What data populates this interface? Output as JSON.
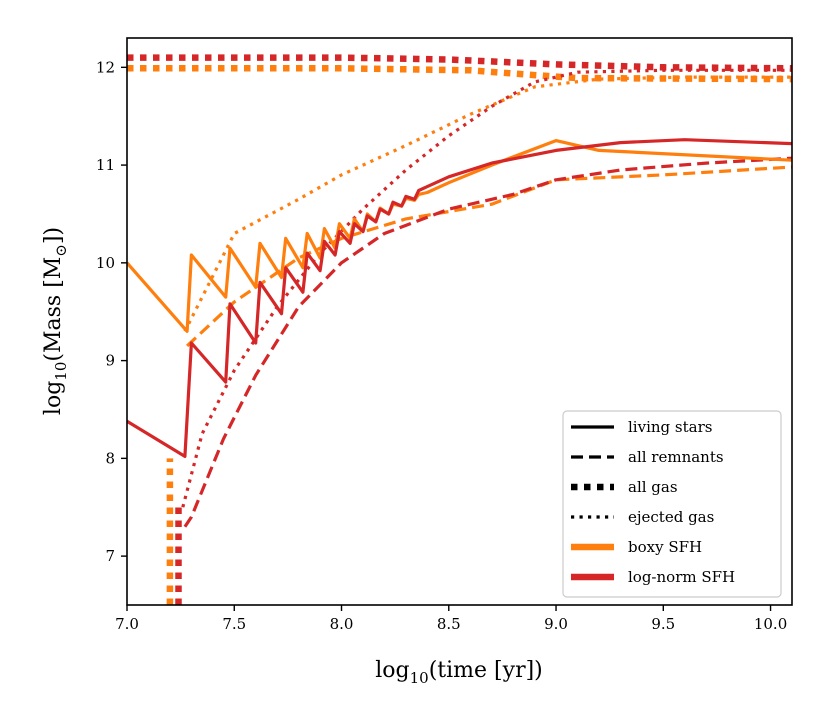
{
  "chart_data": {
    "type": "line",
    "xlabel": "log",
    "xlabel_sub": "10",
    "xlabel_rest": "(time [yr])",
    "ylabel": "log",
    "ylabel_sub": "10",
    "ylabel_rest": "(Mass [M",
    "ylabel_sun": "⊙",
    "ylabel_end": "])",
    "xlim": [
      7.0,
      10.1
    ],
    "ylim": [
      6.5,
      12.3
    ],
    "xticks": [
      "7.0",
      "7.5",
      "8.0",
      "8.5",
      "9.0",
      "9.5",
      "10.0"
    ],
    "yticks": [
      "7",
      "8",
      "9",
      "10",
      "11",
      "12"
    ],
    "grid": false,
    "legend_position": "lower-right",
    "legend": [
      {
        "label": "living stars",
        "style": "solid",
        "color": "#000000"
      },
      {
        "label": "all remnants",
        "style": "dashed",
        "color": "#000000"
      },
      {
        "label": "all gas",
        "style": "dense-dotted",
        "color": "#000000"
      },
      {
        "label": "ejected gas",
        "style": "dotted",
        "color": "#000000"
      },
      {
        "label": "boxy SFH",
        "style": "solid-thick",
        "color": "#ff7f0e"
      },
      {
        "label": "log-norm SFH",
        "style": "solid-thick",
        "color": "#d62728"
      }
    ],
    "colors": {
      "boxy": "#ff7f0e",
      "lognorm": "#d62728"
    },
    "series": [
      {
        "model": "boxy SFH",
        "kind": "all gas",
        "style": "dense-dotted",
        "color": "#ff7f0e",
        "x": [
          7.0,
          8.0,
          8.6,
          8.9,
          9.1,
          10.1
        ],
        "y": [
          11.99,
          11.99,
          11.97,
          11.92,
          11.89,
          11.88
        ]
      },
      {
        "model": "boxy SFH",
        "kind": "all gas (initial drop)",
        "style": "dense-dotted",
        "color": "#ff7f0e",
        "x": [
          7.2,
          7.2
        ],
        "y": [
          6.5,
          8.0
        ]
      },
      {
        "model": "log-norm SFH",
        "kind": "all gas",
        "style": "dense-dotted",
        "color": "#d62728",
        "x": [
          7.0,
          8.0,
          8.5,
          9.0,
          9.5,
          10.1
        ],
        "y": [
          12.1,
          12.1,
          12.08,
          12.03,
          12.0,
          11.99
        ]
      },
      {
        "model": "log-norm SFH",
        "kind": "all gas (initial drop)",
        "style": "dense-dotted",
        "color": "#d62728",
        "x": [
          7.24,
          7.24
        ],
        "y": [
          6.5,
          7.5
        ]
      },
      {
        "model": "boxy SFH",
        "kind": "ejected gas",
        "style": "dotted",
        "color": "#ff7f0e",
        "x": [
          7.27,
          7.5,
          7.8,
          8.0,
          8.3,
          8.6,
          8.9,
          9.2,
          9.6,
          10.1
        ],
        "y": [
          9.3,
          10.3,
          10.65,
          10.9,
          11.2,
          11.52,
          11.8,
          11.88,
          11.9,
          11.9
        ]
      },
      {
        "model": "log-norm SFH",
        "kind": "ejected gas",
        "style": "dotted",
        "color": "#d62728",
        "x": [
          7.26,
          7.35,
          7.5,
          7.7,
          7.9,
          8.1,
          8.3,
          8.5,
          8.7,
          8.9,
          9.1,
          9.5,
          10.1
        ],
        "y": [
          7.5,
          8.25,
          8.9,
          9.55,
          10.1,
          10.55,
          10.95,
          11.3,
          11.6,
          11.85,
          11.95,
          11.97,
          11.97
        ]
      },
      {
        "model": "boxy SFH",
        "kind": "all remnants",
        "style": "dashed",
        "color": "#ff7f0e",
        "x": [
          7.28,
          7.5,
          7.8,
          8.0,
          8.3,
          8.7,
          9.0,
          9.5,
          10.1
        ],
        "y": [
          9.15,
          9.6,
          10.05,
          10.25,
          10.45,
          10.6,
          10.85,
          10.9,
          10.98
        ]
      },
      {
        "model": "log-norm SFH",
        "kind": "all remnants",
        "style": "dashed",
        "color": "#d62728",
        "x": [
          7.27,
          7.3,
          7.45,
          7.6,
          7.8,
          8.0,
          8.2,
          8.5,
          8.8,
          9.0,
          9.3,
          9.7,
          10.1
        ],
        "y": [
          7.3,
          7.4,
          8.2,
          8.85,
          9.55,
          10.0,
          10.3,
          10.55,
          10.7,
          10.85,
          10.95,
          11.02,
          11.07
        ]
      },
      {
        "model": "boxy SFH",
        "kind": "living stars",
        "style": "solid",
        "color": "#ff7f0e",
        "x": [
          7.0,
          7.28,
          7.3,
          7.46,
          7.48,
          7.6,
          7.62,
          7.72,
          7.74,
          7.82,
          7.84,
          7.9,
          7.92,
          7.97,
          7.99,
          8.04,
          8.06,
          8.1,
          8.12,
          8.16,
          8.18,
          8.22,
          8.24,
          8.28,
          8.3,
          8.34,
          8.36,
          8.4,
          8.5,
          8.7,
          9.0,
          9.2,
          10.1
        ],
        "y": [
          10.0,
          9.3,
          10.08,
          9.65,
          10.15,
          9.75,
          10.2,
          9.85,
          10.25,
          9.95,
          10.3,
          10.05,
          10.35,
          10.15,
          10.4,
          10.25,
          10.45,
          10.32,
          10.5,
          10.42,
          10.56,
          10.5,
          10.6,
          10.58,
          10.66,
          10.64,
          10.7,
          10.72,
          10.82,
          11.0,
          11.25,
          11.15,
          11.05
        ]
      },
      {
        "model": "log-norm SFH",
        "kind": "living stars",
        "style": "solid",
        "color": "#d62728",
        "x": [
          7.0,
          7.27,
          7.3,
          7.46,
          7.48,
          7.6,
          7.62,
          7.72,
          7.74,
          7.82,
          7.84,
          7.9,
          7.92,
          7.97,
          7.99,
          8.04,
          8.06,
          8.1,
          8.12,
          8.16,
          8.18,
          8.22,
          8.24,
          8.28,
          8.3,
          8.34,
          8.36,
          8.4,
          8.5,
          8.7,
          9.0,
          9.3,
          9.6,
          10.1
        ],
        "y": [
          8.38,
          8.02,
          9.18,
          8.78,
          9.58,
          9.18,
          9.8,
          9.48,
          9.95,
          9.7,
          10.1,
          9.92,
          10.22,
          10.08,
          10.32,
          10.2,
          10.4,
          10.32,
          10.48,
          10.42,
          10.55,
          10.5,
          10.62,
          10.58,
          10.68,
          10.65,
          10.74,
          10.78,
          10.88,
          11.02,
          11.15,
          11.23,
          11.26,
          11.22
        ]
      }
    ]
  }
}
